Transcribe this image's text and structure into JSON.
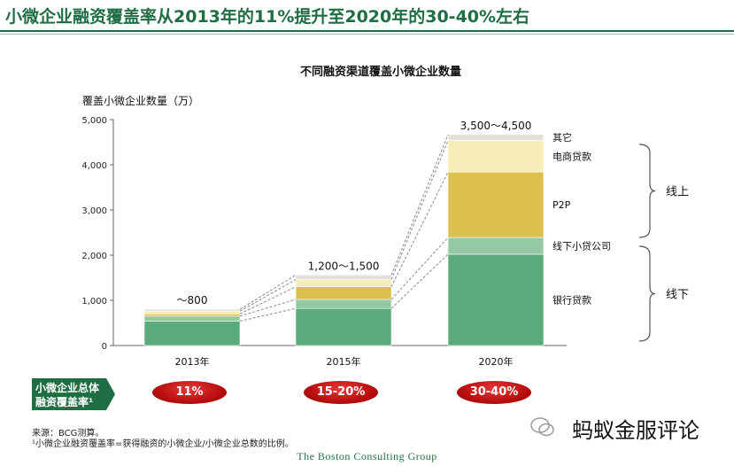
{
  "slide_title": "小微企业融资覆盖率从2013年的11%提升至2020年的30-40%左右",
  "coverage_label_line1": "小微企业总体",
  "coverage_label_line2": "融资覆盖率¹",
  "coverage_rates": [
    "11%",
    "15-20%",
    "30-40%"
  ],
  "footnote_source": "来源：BCG测算。",
  "footnote_def": "¹小微企业融资覆盖率=获得融资的小微企业/小微企业总数的比例。",
  "company": "The Boston Consulting Group",
  "watermark": "蚂蚁金服评论",
  "colors": {
    "green_dark": "#1f6e43",
    "bank_loan": "#5aaa7c",
    "microloan": "#93c9a4",
    "p2p": "#dcc04f",
    "ecommerce": "#f6edb8",
    "other": "#e3e1dc",
    "pill_red": "#b90e0e"
  },
  "chart_data": {
    "type": "bar",
    "stacked": true,
    "title": "不同融资渠道覆盖小微企业数量",
    "ylabel": "覆盖小微企业数量（万）",
    "ylim": [
      0,
      5000
    ],
    "yticks": [
      0,
      1000,
      2000,
      3000,
      4000,
      5000
    ],
    "ytick_labels": [
      "0",
      "1,000",
      "2,000",
      "3,000",
      "4,000",
      "5,000"
    ],
    "categories": [
      "2013年",
      "2015年",
      "2020年"
    ],
    "totals_label": [
      "～800",
      "1,200～1,500",
      "3,500～4,500"
    ],
    "series": [
      {
        "name": "银行贷款",
        "values": [
          540,
          820,
          2020
        ]
      },
      {
        "name": "线下小贷公司",
        "values": [
          110,
          200,
          370
        ]
      },
      {
        "name": "P2P",
        "values": [
          50,
          280,
          1450
        ]
      },
      {
        "name": "电商贷款",
        "values": [
          60,
          160,
          700
        ]
      },
      {
        "name": "其它",
        "values": [
          40,
          100,
          130
        ]
      }
    ],
    "groups": [
      {
        "name": "线上",
        "members": [
          "电商贷款",
          "P2P"
        ]
      },
      {
        "name": "线下",
        "members": [
          "线下小贷公司",
          "银行贷款"
        ]
      }
    ]
  }
}
